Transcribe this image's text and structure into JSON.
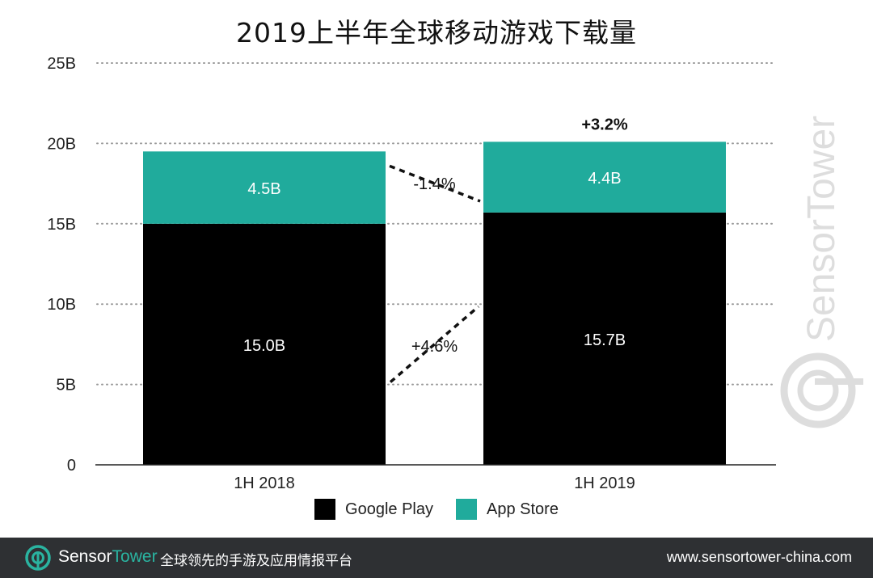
{
  "chart_data": {
    "type": "bar",
    "stacked": true,
    "title": "2019上半年全球移动游戏下载量",
    "categories": [
      "1H 2018",
      "1H 2019"
    ],
    "series": [
      {
        "name": "Google Play",
        "values": [
          15.0,
          15.7
        ],
        "labels": [
          "15.0B",
          "15.7B"
        ],
        "color": "#000000"
      },
      {
        "name": "App Store",
        "values": [
          4.5,
          4.4
        ],
        "labels": [
          "4.5B",
          "4.4B"
        ],
        "color": "#20ab9c"
      }
    ],
    "ylim": [
      0,
      25
    ],
    "yticks": [
      0,
      5,
      10,
      15,
      20,
      25
    ],
    "ytick_labels": [
      "0",
      "5B",
      "10B",
      "15B",
      "20B",
      "25B"
    ],
    "grid": "dotted horizontal",
    "legend_position": "bottom-center",
    "annotations": {
      "total_change": "+3.2%",
      "app_store_change": "-1.4%",
      "google_play_change": "+4.6%"
    }
  },
  "watermark": {
    "brand": "SensorTower"
  },
  "footer": {
    "brand_part1": "Sensor",
    "brand_part2": "Tower",
    "tagline": "全球领先的手游及应用情报平台",
    "url": "www.sensortower-china.com"
  }
}
